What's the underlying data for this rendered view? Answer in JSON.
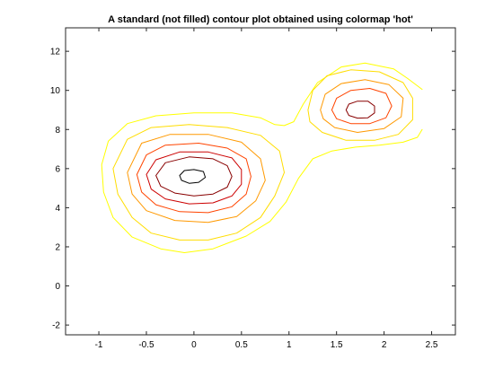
{
  "chart_data": {
    "type": "contour",
    "title": "A standard (not filled) contour plot obtained using colormap 'hot'",
    "colormap": "hot",
    "filled": false,
    "xlabel": "",
    "ylabel": "",
    "xlim": [
      -1.35,
      2.75
    ],
    "ylim": [
      -2.5,
      13.2
    ],
    "xticks": [
      -1,
      -0.5,
      0,
      0.5,
      1,
      1.5,
      2,
      2.5
    ],
    "xtick_labels": [
      "-1",
      "-0.5",
      "0",
      "0.5",
      "1",
      "1.5",
      "2",
      "2.5"
    ],
    "yticks": [
      -2,
      0,
      2,
      4,
      6,
      8,
      10,
      12
    ],
    "ytick_labels": [
      "-2",
      "0",
      "2",
      "4",
      "6",
      "8",
      "10",
      "12"
    ],
    "grid": false,
    "legend": "none",
    "contours": [
      {
        "level_index": 1,
        "color": "#ffff00",
        "paths": [
          {
            "closed": false,
            "points": [
              [
                2.4,
                8.0
              ],
              [
                2.35,
                7.6
              ],
              [
                2.2,
                7.35
              ],
              [
                1.95,
                7.2
              ],
              [
                1.7,
                7.1
              ],
              [
                1.45,
                6.9
              ],
              [
                1.25,
                6.5
              ],
              [
                1.1,
                5.5
              ],
              [
                0.97,
                4.3
              ],
              [
                0.8,
                3.3
              ],
              [
                0.55,
                2.55
              ],
              [
                0.2,
                1.9
              ],
              [
                -0.1,
                1.7
              ],
              [
                -0.35,
                1.9
              ],
              [
                -0.65,
                2.5
              ],
              [
                -0.85,
                3.5
              ],
              [
                -0.95,
                4.8
              ],
              [
                -0.97,
                6.2
              ],
              [
                -0.9,
                7.4
              ],
              [
                -0.7,
                8.3
              ],
              [
                -0.4,
                8.7
              ],
              [
                0.0,
                8.85
              ],
              [
                0.4,
                8.85
              ],
              [
                0.7,
                8.6
              ],
              [
                0.85,
                8.25
              ],
              [
                0.95,
                8.2
              ],
              [
                1.05,
                8.4
              ],
              [
                1.15,
                9.3
              ],
              [
                1.3,
                10.4
              ],
              [
                1.55,
                11.2
              ],
              [
                1.8,
                11.4
              ],
              [
                2.1,
                11.1
              ],
              [
                2.25,
                10.6
              ],
              [
                2.4,
                10.05
              ]
            ]
          }
        ]
      },
      {
        "level_index": 2,
        "color": "#ffdd00",
        "paths": [
          {
            "closed": true,
            "points": [
              [
                -0.85,
                6.0
              ],
              [
                -0.8,
                4.7
              ],
              [
                -0.65,
                3.5
              ],
              [
                -0.45,
                2.7
              ],
              [
                -0.15,
                2.35
              ],
              [
                0.15,
                2.35
              ],
              [
                0.45,
                2.7
              ],
              [
                0.7,
                3.5
              ],
              [
                0.85,
                4.6
              ],
              [
                0.95,
                5.8
              ],
              [
                0.9,
                6.9
              ],
              [
                0.7,
                7.7
              ],
              [
                0.35,
                8.1
              ],
              [
                -0.05,
                8.25
              ],
              [
                -0.45,
                8.1
              ],
              [
                -0.7,
                7.5
              ]
            ]
          },
          {
            "closed": true,
            "points": [
              [
                1.2,
                9.0
              ],
              [
                1.25,
                10.0
              ],
              [
                1.4,
                10.75
              ],
              [
                1.65,
                11.05
              ],
              [
                1.95,
                10.95
              ],
              [
                2.2,
                10.4
              ],
              [
                2.3,
                9.6
              ],
              [
                2.3,
                8.5
              ],
              [
                2.15,
                7.75
              ],
              [
                1.9,
                7.45
              ],
              [
                1.6,
                7.45
              ],
              [
                1.35,
                7.85
              ],
              [
                1.22,
                8.4
              ]
            ]
          }
        ]
      },
      {
        "level_index": 3,
        "color": "#ff9900",
        "paths": [
          {
            "closed": true,
            "points": [
              [
                -0.7,
                5.8
              ],
              [
                -0.65,
                4.7
              ],
              [
                -0.5,
                3.85
              ],
              [
                -0.2,
                3.35
              ],
              [
                0.15,
                3.25
              ],
              [
                0.45,
                3.55
              ],
              [
                0.65,
                4.35
              ],
              [
                0.75,
                5.4
              ],
              [
                0.7,
                6.5
              ],
              [
                0.5,
                7.35
              ],
              [
                0.15,
                7.75
              ],
              [
                -0.25,
                7.75
              ],
              [
                -0.55,
                7.3
              ]
            ]
          },
          {
            "closed": true,
            "points": [
              [
                1.33,
                9.0
              ],
              [
                1.38,
                9.8
              ],
              [
                1.55,
                10.35
              ],
              [
                1.8,
                10.55
              ],
              [
                2.05,
                10.3
              ],
              [
                2.2,
                9.6
              ],
              [
                2.18,
                8.65
              ],
              [
                2.0,
                8.05
              ],
              [
                1.72,
                7.85
              ],
              [
                1.48,
                8.1
              ],
              [
                1.36,
                8.55
              ]
            ]
          }
        ]
      },
      {
        "level_index": 4,
        "color": "#ff4400",
        "paths": [
          {
            "closed": true,
            "points": [
              [
                -0.6,
                5.7
              ],
              [
                -0.55,
                4.8
              ],
              [
                -0.4,
                4.15
              ],
              [
                -0.15,
                3.8
              ],
              [
                0.15,
                3.75
              ],
              [
                0.4,
                4.05
              ],
              [
                0.55,
                4.7
              ],
              [
                0.6,
                5.6
              ],
              [
                0.55,
                6.5
              ],
              [
                0.35,
                7.05
              ],
              [
                0.05,
                7.3
              ],
              [
                -0.3,
                7.2
              ],
              [
                -0.5,
                6.7
              ]
            ]
          },
          {
            "closed": true,
            "points": [
              [
                1.45,
                9.0
              ],
              [
                1.5,
                9.6
              ],
              [
                1.65,
                10.0
              ],
              [
                1.85,
                10.1
              ],
              [
                2.02,
                9.85
              ],
              [
                2.08,
                9.2
              ],
              [
                2.02,
                8.6
              ],
              [
                1.85,
                8.3
              ],
              [
                1.65,
                8.3
              ],
              [
                1.5,
                8.55
              ]
            ]
          }
        ]
      },
      {
        "level_index": 5,
        "color": "#cc0000",
        "paths": [
          {
            "closed": true,
            "points": [
              [
                -0.5,
                5.7
              ],
              [
                -0.45,
                4.95
              ],
              [
                -0.3,
                4.45
              ],
              [
                -0.05,
                4.2
              ],
              [
                0.2,
                4.25
              ],
              [
                0.4,
                4.6
              ],
              [
                0.5,
                5.2
              ],
              [
                0.5,
                5.95
              ],
              [
                0.4,
                6.55
              ],
              [
                0.15,
                6.85
              ],
              [
                -0.15,
                6.85
              ],
              [
                -0.4,
                6.45
              ]
            ]
          }
        ]
      },
      {
        "level_index": 6,
        "color": "#880000",
        "paths": [
          {
            "closed": true,
            "points": [
              [
                -0.4,
                5.65
              ],
              [
                -0.35,
                5.1
              ],
              [
                -0.2,
                4.75
              ],
              [
                0.0,
                4.6
              ],
              [
                0.2,
                4.7
              ],
              [
                0.35,
                5.05
              ],
              [
                0.4,
                5.6
              ],
              [
                0.35,
                6.15
              ],
              [
                0.2,
                6.5
              ],
              [
                -0.05,
                6.6
              ],
              [
                -0.3,
                6.3
              ]
            ]
          },
          {
            "closed": true,
            "points": [
              [
                1.6,
                9.0
              ],
              [
                1.63,
                9.3
              ],
              [
                1.72,
                9.45
              ],
              [
                1.83,
                9.45
              ],
              [
                1.9,
                9.2
              ],
              [
                1.9,
                8.85
              ],
              [
                1.83,
                8.6
              ],
              [
                1.72,
                8.58
              ],
              [
                1.63,
                8.72
              ]
            ]
          }
        ]
      },
      {
        "level_index": 7,
        "color": "#000000",
        "paths": [
          {
            "closed": true,
            "points": [
              [
                -0.15,
                5.65
              ],
              [
                -0.1,
                5.9
              ],
              [
                0.0,
                5.95
              ],
              [
                0.1,
                5.85
              ],
              [
                0.12,
                5.55
              ],
              [
                0.05,
                5.3
              ],
              [
                -0.05,
                5.25
              ],
              [
                -0.13,
                5.4
              ]
            ]
          }
        ]
      }
    ]
  }
}
